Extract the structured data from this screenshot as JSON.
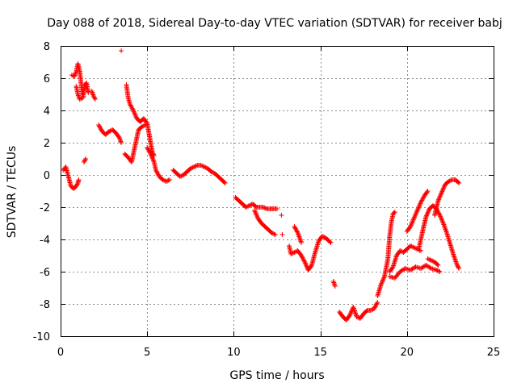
{
  "colors": {
    "series": "#ff0000",
    "grid": "#8c8c8c",
    "axis": "#000000"
  },
  "chart_data": {
    "type": "scatter",
    "title": "Day 088 of 2018, Sidereal Day-to-day VTEC variation (SDTVAR) for receiver babj",
    "xlabel": "GPS time / hours",
    "ylabel": "SDTVAR / TECUs",
    "xlim": [
      0,
      25
    ],
    "ylim": [
      -10,
      8
    ],
    "xticks": [
      0,
      5,
      10,
      15,
      20,
      25
    ],
    "yticks": [
      -10,
      -8,
      -6,
      -4,
      -2,
      0,
      2,
      4,
      6,
      8
    ],
    "grid": true,
    "marker": "+",
    "series": [
      {
        "name": "SDTVAR",
        "segments": [
          [
            [
              0.15,
              0.3
            ],
            [
              0.3,
              0.5
            ],
            [
              0.45,
              -0.1
            ],
            [
              0.6,
              -0.7
            ],
            [
              0.75,
              -0.85
            ],
            [
              0.9,
              -0.7
            ],
            [
              1.0,
              -0.5
            ],
            [
              1.05,
              -0.3
            ]
          ],
          [
            [
              0.65,
              6.2
            ],
            [
              0.8,
              6.1
            ],
            [
              0.9,
              6.4
            ],
            [
              1.0,
              6.9
            ],
            [
              1.1,
              6.5
            ],
            [
              1.2,
              5.5
            ],
            [
              1.25,
              5.0
            ]
          ],
          [
            [
              0.9,
              5.5
            ],
            [
              1.0,
              5.0
            ],
            [
              1.1,
              4.7
            ],
            [
              1.3,
              4.8
            ],
            [
              1.4,
              5.6
            ],
            [
              1.5,
              5.7
            ],
            [
              1.6,
              5.1
            ]
          ],
          [
            [
              1.8,
              5.2
            ],
            [
              1.9,
              4.9
            ],
            [
              2.0,
              4.7
            ]
          ],
          [
            [
              1.35,
              0.8
            ],
            [
              1.45,
              1.0
            ]
          ],
          [
            [
              2.2,
              3.1
            ],
            [
              2.4,
              2.7
            ],
            [
              2.6,
              2.5
            ],
            [
              2.8,
              2.7
            ],
            [
              3.0,
              2.8
            ],
            [
              3.2,
              2.6
            ],
            [
              3.4,
              2.3
            ],
            [
              3.5,
              2.0
            ]
          ],
          [
            [
              3.8,
              5.6
            ],
            [
              3.9,
              4.8
            ],
            [
              4.0,
              4.4
            ],
            [
              4.2,
              4.0
            ],
            [
              4.4,
              3.5
            ],
            [
              4.6,
              3.3
            ],
            [
              4.8,
              3.5
            ],
            [
              5.0,
              3.2
            ],
            [
              5.1,
              2.6
            ],
            [
              5.2,
              2.0
            ],
            [
              5.3,
              1.4
            ],
            [
              5.4,
              1.2
            ]
          ],
          [
            [
              3.7,
              1.3
            ],
            [
              3.9,
              1.1
            ],
            [
              4.1,
              0.8
            ],
            [
              4.3,
              1.8
            ],
            [
              4.5,
              2.8
            ],
            [
              4.7,
              3.0
            ],
            [
              4.9,
              3.1
            ]
          ],
          [
            [
              5.0,
              1.7
            ],
            [
              5.2,
              1.3
            ],
            [
              5.4,
              0.8
            ],
            [
              5.5,
              0.3
            ],
            [
              5.7,
              -0.1
            ],
            [
              5.9,
              -0.3
            ],
            [
              6.1,
              -0.4
            ],
            [
              6.3,
              -0.3
            ]
          ],
          [
            [
              6.5,
              0.3
            ],
            [
              6.7,
              0.1
            ],
            [
              6.9,
              -0.1
            ],
            [
              7.1,
              0.0
            ],
            [
              7.3,
              0.2
            ],
            [
              7.5,
              0.4
            ],
            [
              7.7,
              0.5
            ],
            [
              7.9,
              0.6
            ],
            [
              8.1,
              0.6
            ],
            [
              8.3,
              0.5
            ],
            [
              8.5,
              0.4
            ],
            [
              8.7,
              0.2
            ],
            [
              8.9,
              0.1
            ],
            [
              9.1,
              -0.1
            ],
            [
              9.3,
              -0.3
            ],
            [
              9.5,
              -0.5
            ]
          ],
          [
            [
              10.1,
              -1.4
            ],
            [
              10.3,
              -1.6
            ],
            [
              10.5,
              -1.8
            ],
            [
              10.7,
              -2.0
            ],
            [
              10.9,
              -1.9
            ],
            [
              11.1,
              -1.8
            ],
            [
              11.3,
              -2.0
            ],
            [
              11.5,
              -2.0
            ],
            [
              11.7,
              -2.0
            ],
            [
              11.9,
              -2.1
            ],
            [
              12.1,
              -2.1
            ],
            [
              12.3,
              -2.1
            ],
            [
              12.5,
              -2.1
            ]
          ],
          [
            [
              11.2,
              -2.2
            ],
            [
              11.4,
              -2.7
            ],
            [
              11.6,
              -3.0
            ],
            [
              11.8,
              -3.2
            ],
            [
              12.0,
              -3.4
            ],
            [
              12.2,
              -3.6
            ],
            [
              12.4,
              -3.7
            ]
          ],
          [
            [
              12.75,
              -2.5
            ]
          ],
          [
            [
              12.8,
              -3.7
            ]
          ],
          [
            [
              13.2,
              -4.4
            ],
            [
              13.3,
              -4.9
            ],
            [
              13.5,
              -4.8
            ],
            [
              13.7,
              -4.7
            ],
            [
              13.9,
              -5.0
            ],
            [
              14.1,
              -5.4
            ],
            [
              14.3,
              -5.9
            ],
            [
              14.5,
              -5.6
            ],
            [
              14.7,
              -4.8
            ],
            [
              14.9,
              -4.1
            ],
            [
              15.1,
              -3.8
            ],
            [
              15.3,
              -3.9
            ],
            [
              15.5,
              -4.1
            ],
            [
              15.6,
              -4.2
            ]
          ],
          [
            [
              13.5,
              -3.2
            ],
            [
              13.7,
              -3.6
            ],
            [
              13.9,
              -4.2
            ]
          ],
          [
            [
              15.75,
              -6.6
            ],
            [
              15.85,
              -6.9
            ]
          ],
          [
            [
              16.1,
              -8.5
            ],
            [
              16.3,
              -8.8
            ],
            [
              16.5,
              -9.0
            ],
            [
              16.7,
              -8.7
            ],
            [
              16.9,
              -8.2
            ],
            [
              17.1,
              -8.8
            ],
            [
              17.3,
              -8.9
            ],
            [
              17.5,
              -8.6
            ],
            [
              17.7,
              -8.4
            ],
            [
              17.9,
              -8.4
            ],
            [
              18.1,
              -8.3
            ],
            [
              18.3,
              -7.9
            ]
          ],
          [
            [
              18.3,
              -7.5
            ],
            [
              18.5,
              -6.8
            ],
            [
              18.7,
              -6.3
            ],
            [
              18.9,
              -5.2
            ],
            [
              19.0,
              -3.8
            ],
            [
              19.1,
              -2.9
            ],
            [
              19.2,
              -2.4
            ],
            [
              19.3,
              -2.3
            ]
          ],
          [
            [
              19.0,
              -6.0
            ],
            [
              19.2,
              -5.7
            ],
            [
              19.4,
              -5.0
            ],
            [
              19.6,
              -4.7
            ],
            [
              19.8,
              -4.8
            ],
            [
              20.0,
              -4.6
            ],
            [
              20.2,
              -4.4
            ],
            [
              20.4,
              -4.5
            ],
            [
              20.6,
              -4.6
            ],
            [
              20.8,
              -4.7
            ]
          ],
          [
            [
              19.0,
              -6.3
            ],
            [
              19.3,
              -6.4
            ],
            [
              19.6,
              -6.0
            ],
            [
              19.9,
              -5.8
            ],
            [
              20.2,
              -5.9
            ],
            [
              20.5,
              -5.7
            ],
            [
              20.8,
              -5.8
            ],
            [
              21.1,
              -5.6
            ],
            [
              21.4,
              -5.8
            ],
            [
              21.7,
              -5.9
            ],
            [
              21.9,
              -6.0
            ]
          ],
          [
            [
              20.0,
              -3.5
            ],
            [
              20.2,
              -3.2
            ],
            [
              20.4,
              -2.7
            ],
            [
              20.6,
              -2.2
            ],
            [
              20.8,
              -1.7
            ],
            [
              21.0,
              -1.3
            ],
            [
              21.2,
              -1.0
            ]
          ],
          [
            [
              20.7,
              -4.5
            ],
            [
              20.9,
              -3.5
            ],
            [
              21.1,
              -2.6
            ],
            [
              21.3,
              -2.1
            ],
            [
              21.5,
              -1.9
            ],
            [
              21.7,
              -2.1
            ],
            [
              21.9,
              -2.5
            ],
            [
              22.1,
              -3.0
            ],
            [
              22.3,
              -3.6
            ],
            [
              22.5,
              -4.3
            ],
            [
              22.7,
              -5.0
            ],
            [
              22.9,
              -5.6
            ],
            [
              23.0,
              -5.8
            ]
          ],
          [
            [
              21.2,
              -5.2
            ],
            [
              21.4,
              -5.3
            ],
            [
              21.6,
              -5.4
            ],
            [
              21.8,
              -5.6
            ]
          ],
          [
            [
              21.6,
              -2.5
            ],
            [
              21.8,
              -1.6
            ],
            [
              22.0,
              -1.1
            ],
            [
              22.2,
              -0.6
            ],
            [
              22.4,
              -0.4
            ],
            [
              22.6,
              -0.3
            ],
            [
              22.8,
              -0.3
            ],
            [
              23.0,
              -0.5
            ]
          ]
        ]
      }
    ]
  }
}
